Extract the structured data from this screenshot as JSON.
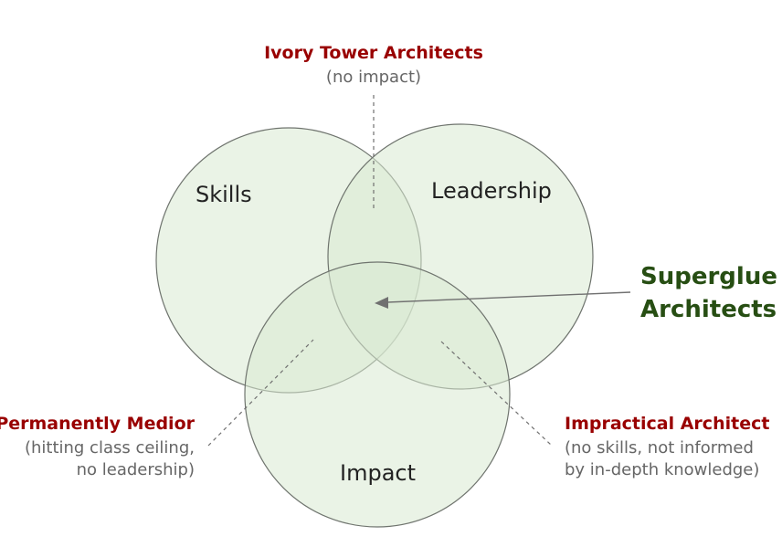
{
  "colors": {
    "region_title": "#990000",
    "region_sub": "#666666",
    "highlight": "#274e13",
    "circle_fill": "#d9e9d2",
    "circle_stroke": "#6f746e"
  },
  "sets": {
    "skills": "Skills",
    "leadership": "Leadership",
    "impact": "Impact"
  },
  "regions": {
    "ivory_tower": {
      "title": "Ivory Tower Architects",
      "subtitle": [
        "(no impact)"
      ]
    },
    "permanently_medior": {
      "title": "Permanently Medior",
      "subtitle": [
        "(hitting class ceiling,",
        "no leadership)"
      ]
    },
    "impractical": {
      "title": "Impractical Architect",
      "subtitle": [
        "(no skills, not informed",
        "by in-depth knowledge)"
      ]
    },
    "superglue": {
      "title": [
        "Superglue",
        "Architects"
      ]
    }
  }
}
